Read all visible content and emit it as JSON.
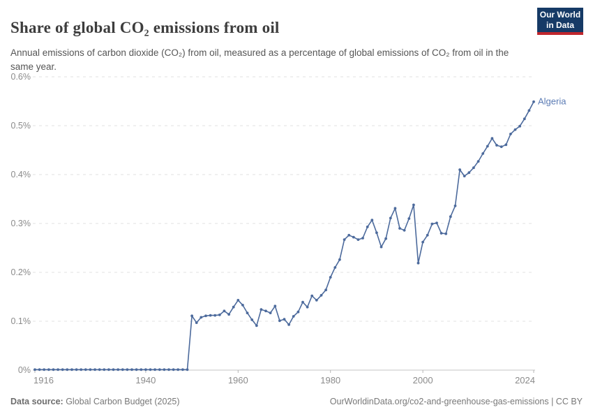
{
  "header": {
    "title": "Share of global CO₂ emissions from oil",
    "subtitle": "Annual emissions of carbon dioxide (CO₂) from oil, measured as a percentage of global emissions of CO₂ from oil in the same year.",
    "logo": {
      "line1": "Our World",
      "line2": "in Data"
    }
  },
  "chart_data": {
    "type": "line",
    "title": "Share of global CO₂ emissions from oil",
    "entity_label": "Algeria",
    "unit": "%",
    "xlim": [
      1916,
      2024
    ],
    "ylim": [
      0,
      0.6
    ],
    "x_ticks": [
      1916,
      1940,
      1960,
      1980,
      2000,
      2024
    ],
    "y_ticks": [
      0,
      0.1,
      0.2,
      0.3,
      0.4,
      0.5,
      0.6
    ],
    "y_tick_labels": [
      "0%",
      "0.1%",
      "0.2%",
      "0.3%",
      "0.4%",
      "0.5%",
      "0.6%"
    ],
    "grid": "horizontal-dashed",
    "legend_position": "end-of-line",
    "x": [
      1916,
      1917,
      1918,
      1919,
      1920,
      1921,
      1922,
      1923,
      1924,
      1925,
      1926,
      1927,
      1928,
      1929,
      1930,
      1931,
      1932,
      1933,
      1934,
      1935,
      1936,
      1937,
      1938,
      1939,
      1940,
      1941,
      1942,
      1943,
      1944,
      1945,
      1946,
      1947,
      1948,
      1949,
      1950,
      1951,
      1952,
      1953,
      1954,
      1955,
      1956,
      1957,
      1958,
      1959,
      1960,
      1961,
      1962,
      1963,
      1964,
      1965,
      1966,
      1967,
      1968,
      1969,
      1970,
      1971,
      1972,
      1973,
      1974,
      1975,
      1976,
      1977,
      1978,
      1979,
      1980,
      1981,
      1982,
      1983,
      1984,
      1985,
      1986,
      1987,
      1988,
      1989,
      1990,
      1991,
      1992,
      1993,
      1994,
      1995,
      1996,
      1997,
      1998,
      1999,
      2000,
      2001,
      2002,
      2003,
      2004,
      2005,
      2006,
      2007,
      2008,
      2009,
      2010,
      2011,
      2012,
      2013,
      2014,
      2015,
      2016,
      2017,
      2018,
      2019,
      2020,
      2021,
      2022,
      2023,
      2024
    ],
    "values": [
      0.001,
      0.001,
      0.001,
      0.001,
      0.001,
      0.001,
      0.001,
      0.001,
      0.001,
      0.001,
      0.001,
      0.001,
      0.001,
      0.001,
      0.001,
      0.001,
      0.001,
      0.001,
      0.001,
      0.001,
      0.001,
      0.001,
      0.001,
      0.001,
      0.001,
      0.001,
      0.001,
      0.001,
      0.001,
      0.001,
      0.001,
      0.001,
      0.001,
      0.001,
      0.111,
      0.097,
      0.108,
      0.111,
      0.112,
      0.112,
      0.113,
      0.121,
      0.114,
      0.129,
      0.143,
      0.133,
      0.117,
      0.103,
      0.091,
      0.124,
      0.121,
      0.117,
      0.131,
      0.101,
      0.104,
      0.093,
      0.11,
      0.119,
      0.139,
      0.129,
      0.152,
      0.143,
      0.153,
      0.164,
      0.19,
      0.21,
      0.226,
      0.267,
      0.276,
      0.272,
      0.267,
      0.27,
      0.293,
      0.307,
      0.281,
      0.252,
      0.269,
      0.311,
      0.331,
      0.29,
      0.286,
      0.31,
      0.338,
      0.219,
      0.262,
      0.276,
      0.299,
      0.301,
      0.28,
      0.279,
      0.314,
      0.336,
      0.41,
      0.397,
      0.404,
      0.414,
      0.427,
      0.443,
      0.458,
      0.474,
      0.46,
      0.457,
      0.461,
      0.483,
      0.492,
      0.499,
      0.514,
      0.531,
      0.549
    ]
  },
  "footer": {
    "source_label": "Data source:",
    "source_text": " Global Carbon Budget (2025)",
    "right_text": "OurWorldinData.org/co2-and-greenhouse-gas-emissions | CC BY"
  },
  "colors": {
    "line": "#4c6a9c",
    "entity_label": "#5b7bb4",
    "gridline": "#e0e0e0",
    "axis_line": "#c4c4c4",
    "tick_mark": "#b5b5b5",
    "axis_text": "#8b8b8b",
    "logo_bg": "#163a66",
    "logo_bar": "#c0272d"
  }
}
